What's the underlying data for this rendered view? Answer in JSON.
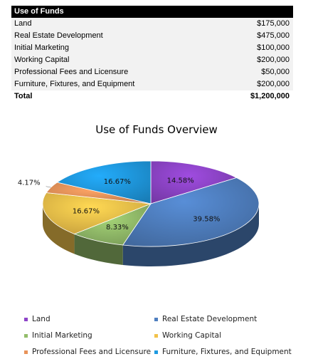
{
  "table": {
    "header": "Use of Funds",
    "rows": [
      {
        "label": "Land",
        "amount": "$175,000"
      },
      {
        "label": "Real Estate Development",
        "amount": "$475,000"
      },
      {
        "label": "Initial Marketing",
        "amount": "$100,000"
      },
      {
        "label": "Working Capital",
        "amount": "$200,000"
      },
      {
        "label": "Professional Fees and Licensure",
        "amount": "$50,000"
      },
      {
        "label": "Furniture, Fixtures, and Equipment",
        "amount": "$200,000"
      }
    ],
    "total": {
      "label": "Total",
      "amount": "$1,200,000"
    }
  },
  "chart_data": {
    "type": "pie",
    "title": "Use of Funds Overview",
    "categories": [
      "Land",
      "Real Estate Development",
      "Initial Marketing",
      "Working Capital",
      "Professional Fees and Licensure",
      "Furniture, Fixtures, and Equipment"
    ],
    "values": [
      14.58,
      39.58,
      8.33,
      16.67,
      4.17,
      16.67
    ],
    "value_labels": [
      "14.58%",
      "39.58%",
      "8.33%",
      "16.67%",
      "4.17%",
      "16.67%"
    ],
    "colors": [
      "#8e44c8",
      "#4f7fc0",
      "#93bd6a",
      "#f2c24a",
      "#e8935a",
      "#1f9ae0"
    ],
    "legend_position": "bottom",
    "style": "3d-tilted"
  }
}
